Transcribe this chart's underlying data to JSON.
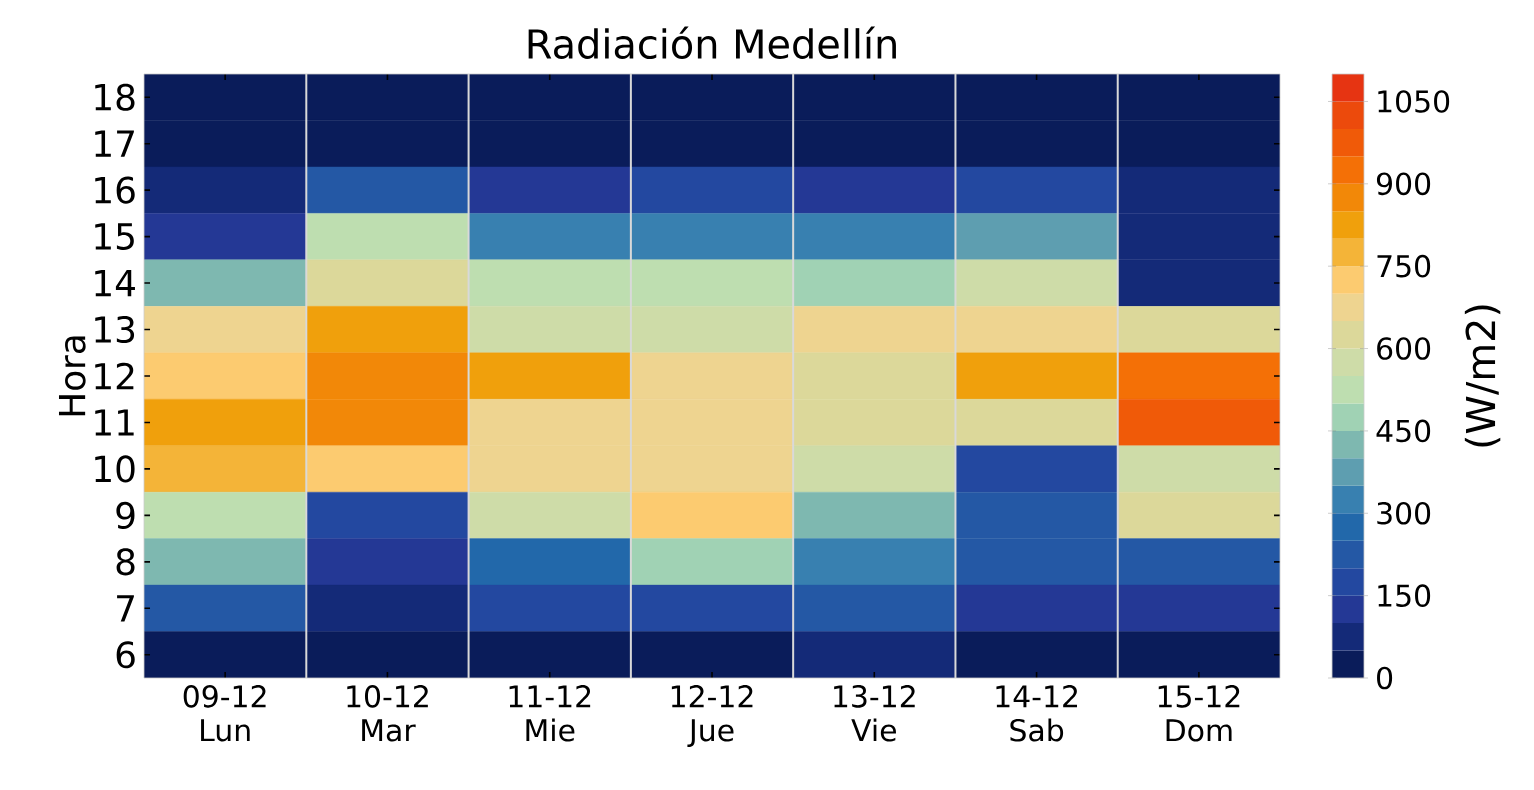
{
  "chart_data": {
    "type": "heatmap",
    "title": "Radiación Medellín",
    "ylabel": "Hora",
    "clabel": "(W/m2)",
    "categories": [
      "09-12 Lun",
      "10-12 Mar",
      "11-12 Mie",
      "12-12 Jue",
      "13-12 Vie",
      "14-12 Sab",
      "15-12 Dom"
    ],
    "y_categories": [
      "18",
      "17",
      "16",
      "15",
      "14",
      "13",
      "12",
      "11",
      "10",
      "9",
      "8",
      "7",
      "6"
    ],
    "cells": [
      [
        25,
        25,
        25,
        25,
        25,
        25,
        25
      ],
      [
        25,
        25,
        25,
        25,
        25,
        25,
        25
      ],
      [
        75,
        225,
        125,
        175,
        125,
        175,
        75
      ],
      [
        125,
        525,
        325,
        325,
        325,
        375,
        75
      ],
      [
        425,
        625,
        525,
        525,
        475,
        575,
        75
      ],
      [
        675,
        825,
        575,
        575,
        675,
        675,
        625
      ],
      [
        725,
        875,
        825,
        675,
        625,
        825,
        925
      ],
      [
        825,
        875,
        675,
        675,
        625,
        625,
        975
      ],
      [
        775,
        725,
        675,
        675,
        575,
        175,
        575
      ],
      [
        525,
        175,
        575,
        725,
        425,
        225,
        625
      ],
      [
        425,
        125,
        275,
        475,
        325,
        225,
        225
      ],
      [
        225,
        75,
        175,
        175,
        225,
        125,
        125
      ],
      [
        25,
        25,
        25,
        25,
        75,
        25,
        25
      ]
    ],
    "clim": [
      0,
      1100
    ],
    "cticks": [
      0,
      150,
      300,
      450,
      600,
      750,
      900,
      1050
    ],
    "grid": "x"
  }
}
